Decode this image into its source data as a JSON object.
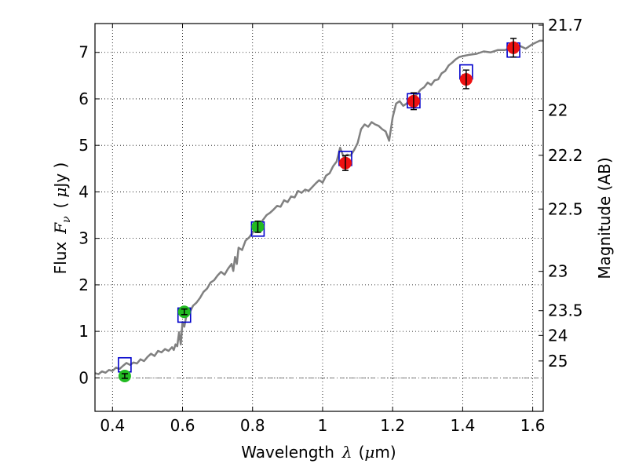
{
  "chart_data": {
    "type": "scatter",
    "xlabel": "Wavelength",
    "xlabel_symbol": "λ",
    "xlabel_unit_open": "(",
    "xlabel_unit_mu": "μ",
    "xlabel_unit_rest": "m)",
    "ylabel": "Flux",
    "ylabel_symbol": "F",
    "ylabel_symbol_sub": "ν",
    "ylabel_unit_open": "(",
    "ylabel_unit_mu": "μ",
    "ylabel_unit_rest": "Jy )",
    "right_ylabel": "Magnitude (AB)",
    "xlim": [
      0.35,
      1.63
    ],
    "ylim": [
      -0.72,
      7.62
    ],
    "grid": true,
    "x_ticks": [
      0.4,
      0.6,
      0.8,
      1.0,
      1.2,
      1.4,
      1.6
    ],
    "x_tick_labels": [
      "0.4",
      "0.6",
      "0.8",
      "1",
      "1.2",
      "1.4",
      "1.6"
    ],
    "y_ticks": [
      0,
      1,
      2,
      3,
      4,
      5,
      6,
      7
    ],
    "y_tick_labels": [
      "0",
      "1",
      "2",
      "3",
      "4",
      "5",
      "6",
      "7"
    ],
    "right_ticks": [
      21.7,
      22,
      22.2,
      22.5,
      23,
      23.5,
      24,
      25
    ],
    "right_tick_labels": [
      "21.7",
      "22",
      "22.2",
      "22.5",
      "23",
      "23.5",
      "24",
      "25"
    ],
    "colors": {
      "spectrum": "#808080",
      "model_box": "#0000cc",
      "optical_point": "#22bb22",
      "nir_point": "#ee1111",
      "errorbar": "#000000"
    },
    "spectrum": [
      [
        0.35,
        0.1
      ],
      [
        0.36,
        0.08
      ],
      [
        0.37,
        0.14
      ],
      [
        0.38,
        0.11
      ],
      [
        0.39,
        0.17
      ],
      [
        0.4,
        0.15
      ],
      [
        0.41,
        0.22
      ],
      [
        0.42,
        0.19
      ],
      [
        0.43,
        0.26
      ],
      [
        0.44,
        0.32
      ],
      [
        0.45,
        0.28
      ],
      [
        0.46,
        0.33
      ],
      [
        0.47,
        0.31
      ],
      [
        0.48,
        0.4
      ],
      [
        0.49,
        0.36
      ],
      [
        0.5,
        0.45
      ],
      [
        0.51,
        0.52
      ],
      [
        0.52,
        0.47
      ],
      [
        0.53,
        0.58
      ],
      [
        0.54,
        0.55
      ],
      [
        0.55,
        0.62
      ],
      [
        0.56,
        0.58
      ],
      [
        0.57,
        0.66
      ],
      [
        0.575,
        0.6
      ],
      [
        0.58,
        0.72
      ],
      [
        0.585,
        0.68
      ],
      [
        0.59,
        0.98
      ],
      [
        0.595,
        0.72
      ],
      [
        0.6,
        1.2
      ],
      [
        0.605,
        1.1
      ],
      [
        0.61,
        1.3
      ],
      [
        0.62,
        1.4
      ],
      [
        0.63,
        1.55
      ],
      [
        0.64,
        1.62
      ],
      [
        0.65,
        1.72
      ],
      [
        0.66,
        1.85
      ],
      [
        0.67,
        1.92
      ],
      [
        0.68,
        2.05
      ],
      [
        0.69,
        2.1
      ],
      [
        0.7,
        2.2
      ],
      [
        0.71,
        2.28
      ],
      [
        0.72,
        2.22
      ],
      [
        0.73,
        2.35
      ],
      [
        0.74,
        2.45
      ],
      [
        0.745,
        2.3
      ],
      [
        0.75,
        2.6
      ],
      [
        0.755,
        2.45
      ],
      [
        0.76,
        2.8
      ],
      [
        0.77,
        2.75
      ],
      [
        0.78,
        2.95
      ],
      [
        0.79,
        3.02
      ],
      [
        0.8,
        3.12
      ],
      [
        0.81,
        3.2
      ],
      [
        0.82,
        3.3
      ],
      [
        0.83,
        3.4
      ],
      [
        0.84,
        3.5
      ],
      [
        0.85,
        3.55
      ],
      [
        0.86,
        3.62
      ],
      [
        0.87,
        3.7
      ],
      [
        0.88,
        3.68
      ],
      [
        0.89,
        3.82
      ],
      [
        0.9,
        3.78
      ],
      [
        0.91,
        3.9
      ],
      [
        0.92,
        3.88
      ],
      [
        0.93,
        4.02
      ],
      [
        0.94,
        3.98
      ],
      [
        0.95,
        4.05
      ],
      [
        0.96,
        4.02
      ],
      [
        0.97,
        4.1
      ],
      [
        0.98,
        4.18
      ],
      [
        0.99,
        4.25
      ],
      [
        1.0,
        4.2
      ],
      [
        1.01,
        4.35
      ],
      [
        1.02,
        4.4
      ],
      [
        1.03,
        4.55
      ],
      [
        1.04,
        4.65
      ],
      [
        1.05,
        4.95
      ],
      [
        1.06,
        4.75
      ],
      [
        1.07,
        4.8
      ],
      [
        1.08,
        4.78
      ],
      [
        1.09,
        4.9
      ],
      [
        1.1,
        5.05
      ],
      [
        1.11,
        5.35
      ],
      [
        1.12,
        5.45
      ],
      [
        1.13,
        5.4
      ],
      [
        1.14,
        5.5
      ],
      [
        1.15,
        5.45
      ],
      [
        1.16,
        5.42
      ],
      [
        1.17,
        5.35
      ],
      [
        1.18,
        5.3
      ],
      [
        1.19,
        5.1
      ],
      [
        1.2,
        5.6
      ],
      [
        1.21,
        5.9
      ],
      [
        1.22,
        5.95
      ],
      [
        1.23,
        5.85
      ],
      [
        1.24,
        5.9
      ],
      [
        1.25,
        6.0
      ],
      [
        1.26,
        6.05
      ],
      [
        1.27,
        6.1
      ],
      [
        1.28,
        6.2
      ],
      [
        1.29,
        6.25
      ],
      [
        1.3,
        6.35
      ],
      [
        1.31,
        6.3
      ],
      [
        1.32,
        6.4
      ],
      [
        1.33,
        6.42
      ],
      [
        1.34,
        6.55
      ],
      [
        1.35,
        6.6
      ],
      [
        1.36,
        6.72
      ],
      [
        1.37,
        6.78
      ],
      [
        1.38,
        6.85
      ],
      [
        1.39,
        6.9
      ],
      [
        1.4,
        6.92
      ],
      [
        1.42,
        6.95
      ],
      [
        1.44,
        6.97
      ],
      [
        1.46,
        7.02
      ],
      [
        1.48,
        7.0
      ],
      [
        1.5,
        7.05
      ],
      [
        1.52,
        7.05
      ],
      [
        1.54,
        7.1
      ],
      [
        1.56,
        7.15
      ],
      [
        1.58,
        7.08
      ],
      [
        1.6,
        7.18
      ],
      [
        1.62,
        7.25
      ],
      [
        1.63,
        7.25
      ]
    ],
    "model_boxes": [
      {
        "x": 0.435,
        "y": 0.28
      },
      {
        "x": 0.605,
        "y": 1.35
      },
      {
        "x": 0.815,
        "y": 3.2
      },
      {
        "x": 1.065,
        "y": 4.72
      },
      {
        "x": 1.26,
        "y": 5.96
      },
      {
        "x": 1.41,
        "y": 6.58
      },
      {
        "x": 1.545,
        "y": 7.05
      }
    ],
    "observed_points": [
      {
        "x": 0.435,
        "y": 0.04,
        "err": 0.05,
        "band": "optical"
      },
      {
        "x": 0.605,
        "y": 1.42,
        "err": 0.06,
        "band": "optical"
      },
      {
        "x": 0.815,
        "y": 3.25,
        "err": 0.12,
        "band": "optical"
      },
      {
        "x": 1.065,
        "y": 4.62,
        "err": 0.16,
        "band": "nir"
      },
      {
        "x": 1.26,
        "y": 5.95,
        "err": 0.18,
        "band": "nir"
      },
      {
        "x": 1.41,
        "y": 6.42,
        "err": 0.2,
        "band": "nir"
      },
      {
        "x": 1.545,
        "y": 7.1,
        "err": 0.2,
        "band": "nir"
      }
    ]
  }
}
